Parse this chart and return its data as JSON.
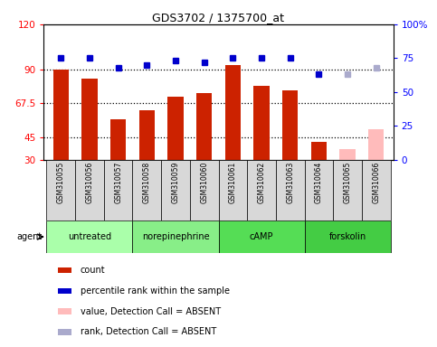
{
  "title": "GDS3702 / 1375700_at",
  "samples": [
    "GSM310055",
    "GSM310056",
    "GSM310057",
    "GSM310058",
    "GSM310059",
    "GSM310060",
    "GSM310061",
    "GSM310062",
    "GSM310063",
    "GSM310064",
    "GSM310065",
    "GSM310066"
  ],
  "bar_values": [
    90,
    84,
    57,
    63,
    72,
    74,
    93,
    79,
    76,
    42,
    37,
    50
  ],
  "bar_colors": [
    "#cc2200",
    "#cc2200",
    "#cc2200",
    "#cc2200",
    "#cc2200",
    "#cc2200",
    "#cc2200",
    "#cc2200",
    "#cc2200",
    "#cc2200",
    "#ffbbbb",
    "#ffbbbb"
  ],
  "rank_values": [
    75,
    75,
    68,
    70,
    73,
    72,
    75,
    75,
    75,
    63,
    63,
    68
  ],
  "rank_absent": [
    false,
    false,
    false,
    false,
    false,
    false,
    false,
    false,
    false,
    false,
    true,
    true
  ],
  "ylim_left": [
    30,
    120
  ],
  "ylim_right": [
    0,
    100
  ],
  "yticks_left": [
    30,
    45,
    67.5,
    90,
    120
  ],
  "ytick_labels_left": [
    "30",
    "45",
    "67.5",
    "90",
    "120"
  ],
  "yticks_right": [
    0,
    25,
    50,
    75,
    100
  ],
  "ytick_labels_right": [
    "0",
    "25",
    "50",
    "75",
    "100%"
  ],
  "hlines": [
    45,
    67.5,
    90
  ],
  "agents": [
    {
      "label": "untreated",
      "start": 0,
      "end": 2,
      "color": "#aaffaa"
    },
    {
      "label": "norepinephrine",
      "start": 3,
      "end": 5,
      "color": "#88ee88"
    },
    {
      "label": "cAMP",
      "start": 6,
      "end": 8,
      "color": "#55dd55"
    },
    {
      "label": "forskolin",
      "start": 9,
      "end": 11,
      "color": "#44cc44"
    }
  ],
  "legend_items": [
    {
      "label": "count",
      "color": "#cc2200"
    },
    {
      "label": "percentile rank within the sample",
      "color": "#0000cc"
    },
    {
      "label": "value, Detection Call = ABSENT",
      "color": "#ffbbbb"
    },
    {
      "label": "rank, Detection Call = ABSENT",
      "color": "#aaaacc"
    }
  ],
  "bar_width": 0.55
}
